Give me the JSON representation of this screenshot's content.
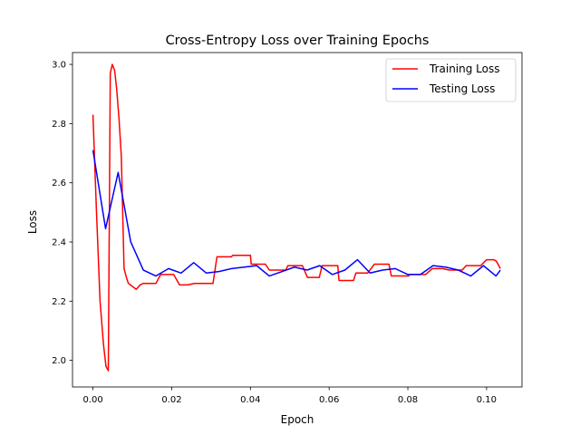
{
  "chart_data": {
    "type": "line",
    "title": "Cross-Entropy Loss over Training Epochs",
    "xlabel": "Epoch",
    "ylabel": "Loss",
    "xlim": [
      -0.0052,
      0.109
    ],
    "ylim": [
      1.91,
      3.04
    ],
    "xticks": [
      0.0,
      0.02,
      0.04,
      0.06,
      0.08,
      0.1
    ],
    "xtick_labels": [
      "0.00",
      "0.02",
      "0.04",
      "0.06",
      "0.08",
      "0.10"
    ],
    "yticks": [
      2.0,
      2.2,
      2.4,
      2.6,
      2.8,
      3.0
    ],
    "ytick_labels": [
      "2.0",
      "2.2",
      "2.4",
      "2.6",
      "2.8",
      "3.0"
    ],
    "grid": false,
    "legend_position": "upper-right",
    "series": [
      {
        "name": "Training Loss",
        "color": "#ff0000",
        "x": [
          0.0,
          0.0009,
          0.0018,
          0.0027,
          0.0033,
          0.0039,
          0.0044,
          0.0049,
          0.0055,
          0.006,
          0.0066,
          0.0072,
          0.0079,
          0.0085,
          0.009,
          0.01,
          0.011,
          0.012,
          0.0128,
          0.0135,
          0.0145,
          0.016,
          0.0172,
          0.0175,
          0.019,
          0.0205,
          0.022,
          0.0225,
          0.024,
          0.0258,
          0.0268,
          0.0285,
          0.0305,
          0.0315,
          0.0335,
          0.0352,
          0.0355,
          0.037,
          0.0385,
          0.04,
          0.0402,
          0.0418,
          0.0438,
          0.0448,
          0.0465,
          0.048,
          0.049,
          0.0495,
          0.0512,
          0.0528,
          0.0532,
          0.0545,
          0.0562,
          0.0575,
          0.0582,
          0.0595,
          0.0612,
          0.0622,
          0.0625,
          0.0642,
          0.0655,
          0.0662,
          0.0668,
          0.0685,
          0.0698,
          0.0715,
          0.0722,
          0.0738,
          0.0752,
          0.0758,
          0.0772,
          0.0788,
          0.0802,
          0.0805,
          0.0822,
          0.0835,
          0.0845,
          0.0862,
          0.0872,
          0.0888,
          0.0905,
          0.0912,
          0.0928,
          0.0938,
          0.0948,
          0.0965,
          0.0975,
          0.0985,
          0.1,
          0.1018,
          0.1025,
          0.1035
        ],
        "values": [
          2.83,
          2.5,
          2.2,
          2.05,
          1.98,
          1.965,
          2.97,
          3.0,
          2.98,
          2.92,
          2.82,
          2.69,
          2.31,
          2.28,
          2.26,
          2.25,
          2.24,
          2.255,
          2.26,
          2.26,
          2.26,
          2.26,
          2.29,
          2.29,
          2.29,
          2.29,
          2.255,
          2.255,
          2.255,
          2.26,
          2.26,
          2.26,
          2.26,
          2.35,
          2.35,
          2.35,
          2.355,
          2.355,
          2.355,
          2.355,
          2.325,
          2.325,
          2.325,
          2.305,
          2.305,
          2.305,
          2.305,
          2.32,
          2.32,
          2.32,
          2.32,
          2.28,
          2.28,
          2.28,
          2.32,
          2.32,
          2.32,
          2.32,
          2.27,
          2.27,
          2.27,
          2.27,
          2.295,
          2.295,
          2.295,
          2.325,
          2.325,
          2.325,
          2.325,
          2.285,
          2.285,
          2.285,
          2.285,
          2.29,
          2.29,
          2.29,
          2.29,
          2.31,
          2.31,
          2.31,
          2.305,
          2.305,
          2.305,
          2.305,
          2.32,
          2.32,
          2.32,
          2.32,
          2.34,
          2.34,
          2.335,
          2.31
        ]
      },
      {
        "name": "Testing Loss",
        "color": "#0000ff",
        "x": [
          0.0,
          0.0032,
          0.0064,
          0.0096,
          0.0128,
          0.016,
          0.0192,
          0.0224,
          0.0256,
          0.0288,
          0.032,
          0.0352,
          0.0384,
          0.0416,
          0.0448,
          0.048,
          0.0512,
          0.0544,
          0.0576,
          0.0608,
          0.064,
          0.0672,
          0.0704,
          0.0736,
          0.0768,
          0.08,
          0.0832,
          0.0864,
          0.0896,
          0.0928,
          0.096,
          0.0992,
          0.1024,
          0.1035
        ],
        "values": [
          2.71,
          2.445,
          2.635,
          2.4,
          2.305,
          2.285,
          2.31,
          2.295,
          2.33,
          2.295,
          2.3,
          2.31,
          2.315,
          2.32,
          2.285,
          2.3,
          2.315,
          2.305,
          2.32,
          2.29,
          2.305,
          2.34,
          2.295,
          2.305,
          2.31,
          2.29,
          2.29,
          2.32,
          2.315,
          2.305,
          2.285,
          2.32,
          2.285,
          2.305
        ]
      }
    ]
  }
}
